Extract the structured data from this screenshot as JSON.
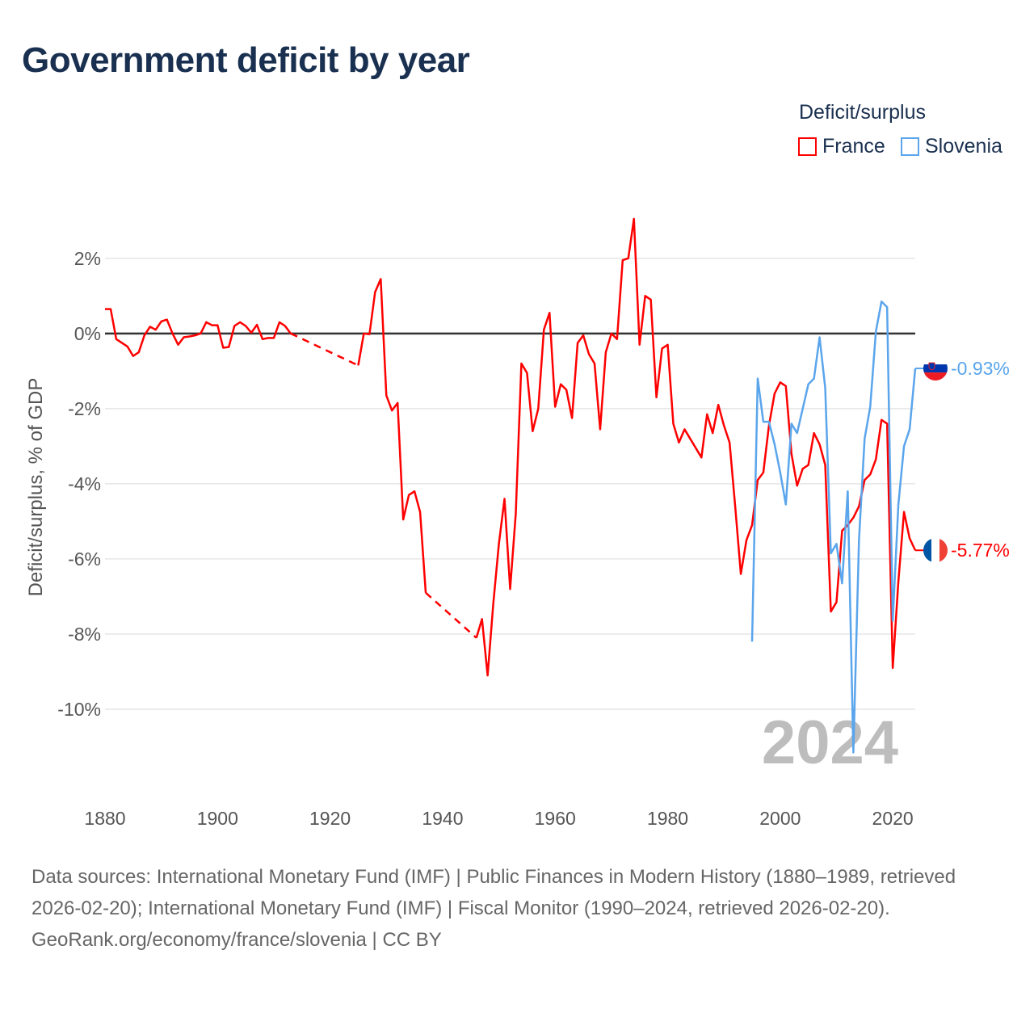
{
  "title": "Government deficit by year",
  "legend": {
    "title": "Deficit/surplus",
    "items": [
      {
        "name": "France",
        "color": "#ff0000"
      },
      {
        "name": "Slovenia",
        "color": "#5aa5ec"
      }
    ]
  },
  "chart_data": {
    "type": "line",
    "title": "Government deficit by year",
    "xlabel": "",
    "ylabel": "Deficit/surplus, % of GDP",
    "xlim": [
      1880,
      2024
    ],
    "ylim": [
      -12.3,
      3.5
    ],
    "x_ticks": [
      1880,
      1900,
      1920,
      1940,
      1960,
      1980,
      2000,
      2020
    ],
    "x_tick_labels": [
      "1880",
      "1900",
      "1920",
      "1940",
      "1960",
      "1980",
      "2000",
      "2020"
    ],
    "y_ticks": [
      2,
      0,
      -2,
      -4,
      -6,
      -8,
      -10
    ],
    "y_tick_labels": [
      "2%",
      "0%",
      "-2%",
      "-4%",
      "-6%",
      "-8%",
      "-10%"
    ],
    "grid": true,
    "legend_placement": "top-right",
    "year_watermark": "2024",
    "series": [
      {
        "name": "France",
        "color": "#ff0000",
        "end_label": "-5.77%",
        "points": [
          [
            1880,
            0.65
          ],
          [
            1881,
            0.65
          ],
          [
            1882,
            -0.15
          ],
          [
            1883,
            -0.25
          ],
          [
            1884,
            -0.35
          ],
          [
            1885,
            -0.6
          ],
          [
            1886,
            -0.5
          ],
          [
            1887,
            -0.05
          ],
          [
            1888,
            0.18
          ],
          [
            1889,
            0.1
          ],
          [
            1890,
            0.32
          ],
          [
            1891,
            0.37
          ],
          [
            1892,
            0.0
          ],
          [
            1893,
            -0.3
          ],
          [
            1894,
            -0.1
          ],
          [
            1895,
            -0.08
          ],
          [
            1896,
            -0.05
          ],
          [
            1897,
            0.0
          ],
          [
            1898,
            0.3
          ],
          [
            1899,
            0.22
          ],
          [
            1900,
            0.22
          ],
          [
            1901,
            -0.38
          ],
          [
            1902,
            -0.36
          ],
          [
            1903,
            0.2
          ],
          [
            1904,
            0.3
          ],
          [
            1905,
            0.2
          ],
          [
            1906,
            0.02
          ],
          [
            1907,
            0.23
          ],
          [
            1908,
            -0.15
          ],
          [
            1909,
            -0.12
          ],
          [
            1910,
            -0.12
          ],
          [
            1911,
            0.3
          ],
          [
            1912,
            0.2
          ],
          [
            1913,
            0.0
          ],
          [
            1925,
            -0.85
          ],
          [
            1926,
            0.0
          ],
          [
            1927,
            -0.02
          ],
          [
            1928,
            1.1
          ],
          [
            1929,
            1.45
          ],
          [
            1930,
            -1.65
          ],
          [
            1931,
            -2.05
          ],
          [
            1932,
            -1.85
          ],
          [
            1933,
            -4.95
          ],
          [
            1934,
            -4.3
          ],
          [
            1935,
            -4.2
          ],
          [
            1936,
            -4.75
          ],
          [
            1937,
            -6.9
          ],
          [
            1946,
            -8.1
          ],
          [
            1947,
            -7.6
          ],
          [
            1948,
            -9.1
          ],
          [
            1949,
            -7.2
          ],
          [
            1950,
            -5.6
          ],
          [
            1951,
            -4.4
          ],
          [
            1952,
            -6.8
          ],
          [
            1953,
            -4.8
          ],
          [
            1954,
            -0.8
          ],
          [
            1955,
            -1.05
          ],
          [
            1956,
            -2.6
          ],
          [
            1957,
            -2.0
          ],
          [
            1958,
            0.1
          ],
          [
            1959,
            0.55
          ],
          [
            1960,
            -1.95
          ],
          [
            1961,
            -1.35
          ],
          [
            1962,
            -1.5
          ],
          [
            1963,
            -2.25
          ],
          [
            1964,
            -0.25
          ],
          [
            1965,
            -0.05
          ],
          [
            1966,
            -0.55
          ],
          [
            1967,
            -0.8
          ],
          [
            1968,
            -2.55
          ],
          [
            1969,
            -0.5
          ],
          [
            1970,
            0.0
          ],
          [
            1971,
            -0.15
          ],
          [
            1972,
            1.95
          ],
          [
            1973,
            2.0
          ],
          [
            1974,
            3.05
          ],
          [
            1975,
            -0.3
          ],
          [
            1976,
            1.0
          ],
          [
            1977,
            0.9
          ],
          [
            1978,
            -1.7
          ],
          [
            1979,
            -0.4
          ],
          [
            1980,
            -0.3
          ],
          [
            1981,
            -2.4
          ],
          [
            1982,
            -2.9
          ],
          [
            1983,
            -2.55
          ],
          [
            1984,
            -2.8
          ],
          [
            1985,
            -3.05
          ],
          [
            1986,
            -3.3
          ],
          [
            1987,
            -2.15
          ],
          [
            1988,
            -2.65
          ],
          [
            1989,
            -1.9
          ],
          [
            1990,
            -2.45
          ],
          [
            1991,
            -2.9
          ],
          [
            1992,
            -4.6
          ],
          [
            1993,
            -6.4
          ],
          [
            1994,
            -5.5
          ],
          [
            1995,
            -5.1
          ],
          [
            1996,
            -3.9
          ],
          [
            1997,
            -3.7
          ],
          [
            1998,
            -2.45
          ],
          [
            1999,
            -1.6
          ],
          [
            2000,
            -1.3
          ],
          [
            2001,
            -1.4
          ],
          [
            2002,
            -3.2
          ],
          [
            2003,
            -4.05
          ],
          [
            2004,
            -3.6
          ],
          [
            2005,
            -3.5
          ],
          [
            2006,
            -2.65
          ],
          [
            2007,
            -2.95
          ],
          [
            2008,
            -3.5
          ],
          [
            2009,
            -7.4
          ],
          [
            2010,
            -7.15
          ],
          [
            2011,
            -5.25
          ],
          [
            2012,
            -5.1
          ],
          [
            2013,
            -4.9
          ],
          [
            2014,
            -4.6
          ],
          [
            2015,
            -3.9
          ],
          [
            2016,
            -3.75
          ],
          [
            2017,
            -3.35
          ],
          [
            2018,
            -2.3
          ],
          [
            2019,
            -2.4
          ],
          [
            2020,
            -8.9
          ],
          [
            2021,
            -6.6
          ],
          [
            2022,
            -4.75
          ],
          [
            2023,
            -5.45
          ],
          [
            2024,
            -5.77
          ]
        ]
      },
      {
        "name": "Slovenia",
        "color": "#5aa5ec",
        "end_label": "-0.93%",
        "points": [
          [
            1995,
            -8.2
          ],
          [
            1996,
            -1.2
          ],
          [
            1997,
            -2.35
          ],
          [
            1998,
            -2.35
          ],
          [
            1999,
            -2.95
          ],
          [
            2000,
            -3.7
          ],
          [
            2001,
            -4.55
          ],
          [
            2002,
            -2.4
          ],
          [
            2003,
            -2.65
          ],
          [
            2004,
            -2.0
          ],
          [
            2005,
            -1.35
          ],
          [
            2006,
            -1.2
          ],
          [
            2007,
            -0.1
          ],
          [
            2008,
            -1.45
          ],
          [
            2009,
            -5.85
          ],
          [
            2010,
            -5.6
          ],
          [
            2011,
            -6.65
          ],
          [
            2012,
            -4.2
          ],
          [
            2013,
            -11.15
          ],
          [
            2014,
            -5.5
          ],
          [
            2015,
            -2.8
          ],
          [
            2016,
            -1.95
          ],
          [
            2017,
            0.05
          ],
          [
            2018,
            0.85
          ],
          [
            2019,
            0.7
          ],
          [
            2020,
            -7.65
          ],
          [
            2021,
            -4.55
          ],
          [
            2022,
            -3.0
          ],
          [
            2023,
            -2.55
          ],
          [
            2024,
            -0.93
          ]
        ]
      }
    ]
  },
  "footer": {
    "sources": "Data sources: International Monetary Fund (IMF) | Public Finances in Modern History (1880–1989, retrieved 2026-02-20); International Monetary Fund (IMF) | Fiscal Monitor (1990–2024, retrieved 2026-02-20).",
    "credit": "GeoRank.org/economy/france/slovenia | CC BY"
  }
}
